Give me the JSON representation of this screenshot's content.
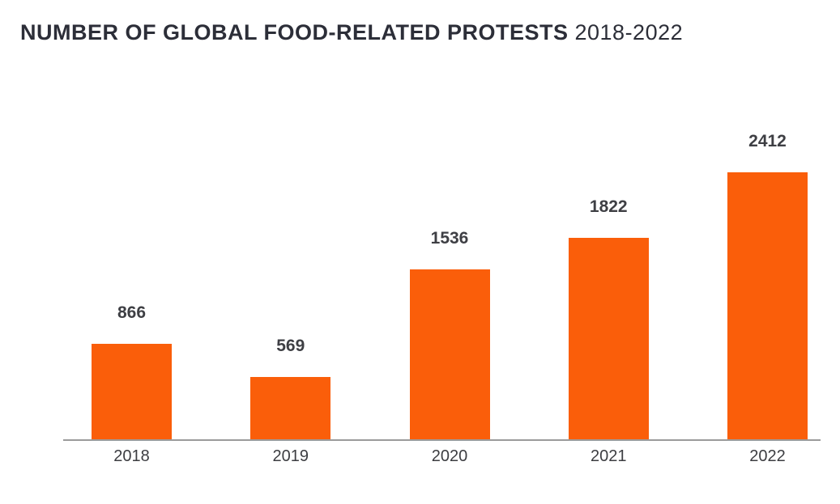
{
  "title": {
    "main": "NUMBER OF GLOBAL FOOD-RELATED PROTESTS",
    "range": "2018-2022"
  },
  "colors": {
    "background": "#FFFFFF",
    "bar": "#FA5E0A",
    "title_text": "#2C2E38",
    "value_label_text": "#3E3F44",
    "tick_label_text": "#3C3D41",
    "axis_line": "#9B9B9B"
  },
  "chart_data": {
    "type": "bar",
    "title": "NUMBER OF GLOBAL FOOD-RELATED PROTESTS 2018-2022",
    "categories": [
      "2018",
      "2019",
      "2020",
      "2021",
      "2022"
    ],
    "values": [
      866,
      569,
      1536,
      1822,
      2412
    ],
    "data_labels": [
      "866",
      "569",
      "1536",
      "1822",
      "2412"
    ],
    "xlabel": "",
    "ylabel": "",
    "ylim": [
      0,
      2412
    ],
    "grid": false,
    "legend": false,
    "y_axis_visible": false,
    "x_axis_visible": true,
    "bar_color": "#FA5E0A"
  }
}
